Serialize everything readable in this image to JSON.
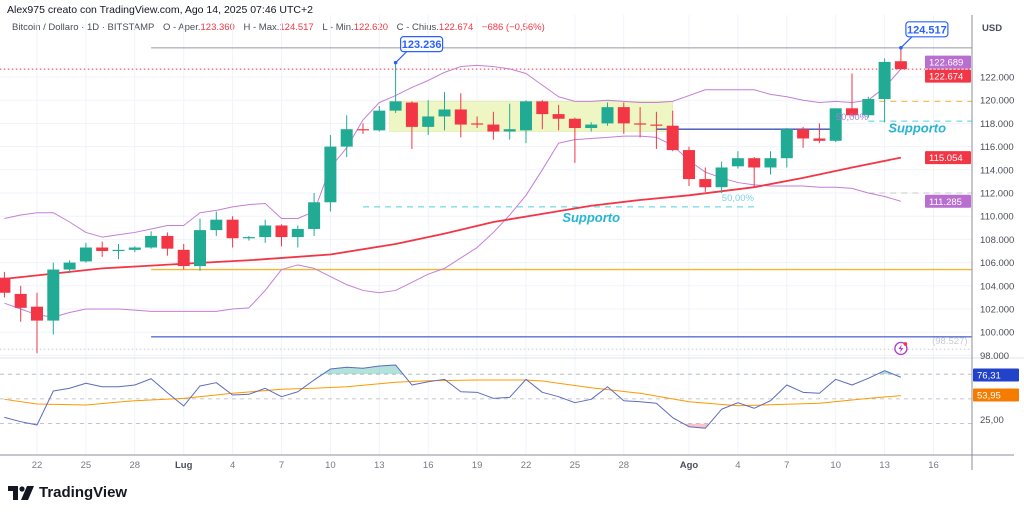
{
  "header": {
    "created_by": "Alex975 creato con TradingView.com, Ago 14, 2025 07:46 UTC+2",
    "symbol": "Bitcoin / Dollaro · 1D · BITSTAMP",
    "ohlc": [
      {
        "label": "O - Aper.",
        "value": "123.360"
      },
      {
        "label": "H - Max.",
        "value": "124.517"
      },
      {
        "label": "L - Min.",
        "value": "122.620"
      },
      {
        "label": "C - Chius.",
        "value": "122.674"
      }
    ],
    "change": "−686 (−0,56%)"
  },
  "brand": "TradingView",
  "chart_data": {
    "type": "candlestick",
    "currency": "USD",
    "colors": {
      "up": "#22ab94",
      "down": "#f23645",
      "bollinger": "#c47fd6",
      "ma": "#f23645",
      "rsi": "#5c6bc0",
      "rsi_ma": "#ff9800",
      "callout": "#2962ff"
    },
    "y_ticks": [
      {
        "value": 122000,
        "label": "122.000"
      },
      {
        "value": 120000,
        "label": "120.000"
      },
      {
        "value": 118000,
        "label": "118.000"
      },
      {
        "value": 116000,
        "label": "116.000"
      },
      {
        "value": 114000,
        "label": "114.000"
      },
      {
        "value": 112000,
        "label": "112.000"
      },
      {
        "value": 110000,
        "label": "110.000"
      },
      {
        "value": 108000,
        "label": "108.000"
      },
      {
        "value": 106000,
        "label": "106.000"
      },
      {
        "value": 104000,
        "label": "104.000"
      },
      {
        "value": 102000,
        "label": "102.000"
      },
      {
        "value": 100000,
        "label": "100.000"
      },
      {
        "value": 98000,
        "label": "98.000"
      }
    ],
    "x_ticks": [
      {
        "date": "2025-06-22",
        "label": "22"
      },
      {
        "date": "2025-06-25",
        "label": "25"
      },
      {
        "date": "2025-06-28",
        "label": "28"
      },
      {
        "date": "2025-07-01",
        "label": "Lug",
        "bold": true
      },
      {
        "date": "2025-07-04",
        "label": "4"
      },
      {
        "date": "2025-07-07",
        "label": "7"
      },
      {
        "date": "2025-07-10",
        "label": "10"
      },
      {
        "date": "2025-07-13",
        "label": "13"
      },
      {
        "date": "2025-07-16",
        "label": "16"
      },
      {
        "date": "2025-07-19",
        "label": "19"
      },
      {
        "date": "2025-07-22",
        "label": "22"
      },
      {
        "date": "2025-07-25",
        "label": "25"
      },
      {
        "date": "2025-07-28",
        "label": "28"
      },
      {
        "date": "2025-08-01",
        "label": "Ago",
        "bold": true
      },
      {
        "date": "2025-08-04",
        "label": "4"
      },
      {
        "date": "2025-08-07",
        "label": "7"
      },
      {
        "date": "2025-08-10",
        "label": "10"
      },
      {
        "date": "2025-08-13",
        "label": "13"
      },
      {
        "date": "2025-08-16",
        "label": "16"
      }
    ],
    "start_date": "2025-06-20",
    "candles": [
      [
        104700,
        105200,
        103000,
        103400
      ],
      [
        103300,
        104000,
        100900,
        102100
      ],
      [
        102200,
        103400,
        98200,
        101000
      ],
      [
        101000,
        106000,
        99800,
        105400
      ],
      [
        105400,
        106200,
        105100,
        106000
      ],
      [
        106100,
        107700,
        106000,
        107300
      ],
      [
        107300,
        107800,
        106500,
        107000
      ],
      [
        107000,
        107600,
        106300,
        107100
      ],
      [
        107100,
        107400,
        106900,
        107300
      ],
      [
        107300,
        108700,
        107200,
        108300
      ],
      [
        108300,
        108600,
        106600,
        107200
      ],
      [
        107100,
        107600,
        105400,
        105700
      ],
      [
        105700,
        109800,
        105300,
        108800
      ],
      [
        108800,
        110400,
        108300,
        109700
      ],
      [
        109700,
        110000,
        107300,
        108100
      ],
      [
        108100,
        108300,
        107900,
        108200
      ],
      [
        108200,
        109700,
        107700,
        109200
      ],
      [
        109200,
        109300,
        107400,
        108200
      ],
      [
        108200,
        109200,
        107300,
        108900
      ],
      [
        108900,
        112000,
        108300,
        111200
      ],
      [
        111200,
        117000,
        110400,
        116000
      ],
      [
        116000,
        118700,
        115100,
        117500
      ],
      [
        117500,
        118000,
        117100,
        117400
      ],
      [
        117400,
        119500,
        117300,
        119100
      ],
      [
        119100,
        123236,
        118900,
        119900
      ],
      [
        119800,
        119900,
        115800,
        117700
      ],
      [
        117700,
        120000,
        117000,
        118600
      ],
      [
        118600,
        120700,
        117400,
        119200
      ],
      [
        119200,
        120600,
        116800,
        117900
      ],
      [
        118000,
        118600,
        117600,
        117900
      ],
      [
        117900,
        119000,
        116600,
        117300
      ],
      [
        117300,
        119700,
        116600,
        117500
      ],
      [
        117400,
        120000,
        116300,
        119900
      ],
      [
        119900,
        120000,
        117500,
        118800
      ],
      [
        118800,
        119600,
        117400,
        118400
      ],
      [
        118400,
        118500,
        114600,
        117600
      ],
      [
        117600,
        118100,
        117300,
        117900
      ],
      [
        118000,
        119800,
        117800,
        119400
      ],
      [
        119400,
        119800,
        117100,
        118000
      ],
      [
        118000,
        119400,
        116800,
        117900
      ],
      [
        117900,
        119000,
        115800,
        117800
      ],
      [
        117800,
        119100,
        115600,
        115700
      ],
      [
        115700,
        116000,
        112600,
        113200
      ],
      [
        113200,
        114200,
        112100,
        112500
      ],
      [
        112500,
        114700,
        112000,
        114200
      ],
      [
        114300,
        115600,
        114100,
        115000
      ],
      [
        115000,
        115100,
        112500,
        114200
      ],
      [
        114200,
        115600,
        113600,
        115000
      ],
      [
        115000,
        117600,
        114200,
        117500
      ],
      [
        117500,
        117700,
        115900,
        116700
      ],
      [
        116700,
        118000,
        116300,
        116500
      ],
      [
        116500,
        119300,
        116400,
        119300
      ],
      [
        119300,
        122300,
        118600,
        118700
      ],
      [
        118700,
        120300,
        118500,
        120100
      ],
      [
        120100,
        123600,
        118100,
        123300
      ],
      [
        123360,
        124517,
        122620,
        122674
      ]
    ],
    "bollinger_upper": [
      109800,
      110100,
      110300,
      110300,
      109500,
      108600,
      108200,
      108400,
      108600,
      108900,
      109200,
      109200,
      110300,
      110500,
      110800,
      111000,
      111100,
      109800,
      109800,
      110400,
      114200,
      115900,
      118300,
      119800,
      120400,
      121100,
      121700,
      122400,
      122900,
      123000,
      122900,
      122700,
      122300,
      121300,
      120300,
      119900,
      119900,
      120000,
      119900,
      119800,
      119800,
      119900,
      120400,
      120900,
      120900,
      120900,
      120900,
      120500,
      120300,
      120000,
      119800,
      119900,
      119800,
      120000,
      121100,
      122689
    ],
    "bollinger_lower": [
      102500,
      102000,
      101500,
      101300,
      101700,
      102000,
      102000,
      102000,
      101900,
      101800,
      101800,
      101800,
      101800,
      101800,
      102000,
      102100,
      103600,
      105400,
      105800,
      105500,
      104800,
      104100,
      103600,
      103400,
      103600,
      104300,
      105000,
      105500,
      106400,
      107300,
      108600,
      110100,
      111800,
      114000,
      116300,
      116600,
      116700,
      116800,
      116900,
      116900,
      116800,
      116100,
      114800,
      113800,
      113300,
      112900,
      112700,
      112600,
      112600,
      112600,
      112500,
      112500,
      112400,
      112000,
      111700,
      111285
    ],
    "moving_average": [
      [
        "2025-06-20",
        104600
      ],
      [
        "2025-06-22",
        104900
      ],
      [
        "2025-06-26",
        105500
      ],
      [
        "2025-07-01",
        105900
      ],
      [
        "2025-07-05",
        106200
      ],
      [
        "2025-07-10",
        106700
      ],
      [
        "2025-07-14",
        107600
      ],
      [
        "2025-07-17",
        108500
      ],
      [
        "2025-07-20",
        109500
      ],
      [
        "2025-07-23",
        110200
      ],
      [
        "2025-07-26",
        110900
      ],
      [
        "2025-07-29",
        111400
      ],
      [
        "2025-08-01",
        111800
      ],
      [
        "2025-08-05",
        112500
      ],
      [
        "2025-08-08",
        113300
      ],
      [
        "2025-08-11",
        114200
      ],
      [
        "2025-08-14",
        115054
      ]
    ],
    "horizontal_lines": [
      {
        "name": "high-line",
        "price": 124517,
        "from": "2025-06-29",
        "color": "#b2b5be",
        "style": "solid"
      },
      {
        "name": "close-price-line",
        "price": 122674,
        "from": "2025-06-18",
        "color": "#f23645",
        "style": "dotted"
      },
      {
        "name": "orange-level-line",
        "price": 105400,
        "from": "2025-06-29",
        "color": "#f5b731",
        "style": "solid"
      },
      {
        "name": "blue-level-line",
        "price": 99600,
        "from": "2025-06-29",
        "color": "#5b6fd6",
        "style": "solid"
      },
      {
        "name": "level-98527-line",
        "price": 98527,
        "from": "2025-06-18",
        "color": "#c8cad2",
        "style": "dotted"
      },
      {
        "name": "support-dashed-line",
        "price": 110800,
        "from": "2025-07-12",
        "to": "2025-08-05",
        "color": "#4dd0e1",
        "style": "dashed"
      },
      {
        "name": "support-dashed-line-right",
        "price": 118200,
        "from": "2025-08-12",
        "color": "#4dd0e1",
        "style": "dashed"
      },
      {
        "name": "orange-dashed-line",
        "price": 119900,
        "from": "2025-08-12",
        "color": "#f5b731",
        "style": "dashed"
      },
      {
        "name": "gray-dashed-line",
        "price": 112000,
        "from": "2025-08-12",
        "color": "#c8cad2",
        "style": "dashed"
      },
      {
        "name": "resistance-line",
        "price": 117500,
        "from": "2025-07-30",
        "to": "2025-08-10",
        "color": "#3f51b5",
        "style": "solid"
      }
    ],
    "range_box": {
      "from": "2025-07-14",
      "to": "2025-07-31",
      "top": 119900,
      "bottom": 117300,
      "color": "#eef7c3"
    },
    "text_annotations": [
      {
        "text": "Supporto",
        "date": "2025-07-26",
        "price": 109500,
        "color": "#26b5d3"
      },
      {
        "text": "Supporto",
        "date": "2025-08-15",
        "price": 117200,
        "color": "#26b5d3"
      },
      {
        "text": "50,00%",
        "date": "2025-08-04",
        "price": 111300,
        "color": "#7fd3e3"
      },
      {
        "text": "50,00%",
        "date": "2025-08-11",
        "price": 118300,
        "color": "#9c7fd6"
      },
      {
        "text": "(98.527)",
        "date": "2025-08-17",
        "price": 99000,
        "color": "#c8cad2"
      }
    ],
    "callouts": [
      {
        "text": "123.236",
        "date": "2025-07-14",
        "price": 123236
      },
      {
        "text": "124.517",
        "date": "2025-08-14",
        "price": 124517
      }
    ],
    "price_badges": [
      {
        "text": "122.689",
        "price": 122689,
        "color": "#b86fcf"
      },
      {
        "text": "122.674",
        "price": 122674,
        "color": "#f23645"
      },
      {
        "text": "115.054",
        "price": 115054,
        "color": "#f23645"
      },
      {
        "text": "111.285",
        "price": 111285,
        "color": "#b86fcf"
      }
    ],
    "alert_icon": {
      "name": "lightning-alert-icon",
      "date": "2025-08-14",
      "price": 98600,
      "color": "#b13fd1"
    },
    "rsi": {
      "values": [
        27.6,
        22.3,
        18.3,
        59.6,
        62.9,
        69.0,
        64.8,
        64.8,
        66.9,
        74.5,
        57.5,
        41.4,
        65.7,
        69.7,
        54.7,
        55.6,
        62.9,
        52.7,
        58.7,
        73.0,
        86.3,
        88.4,
        87.2,
        90.0,
        91.2,
        66.9,
        70.9,
        73.8,
        58.7,
        58.0,
        50.7,
        51.9,
        73.8,
        58.0,
        52.7,
        45.4,
        49.5,
        64.8,
        47.8,
        46.6,
        44.7,
        27.2,
        16.2,
        14.3,
        37.4,
        45.4,
        38.6,
        47.8,
        66.9,
        58.0,
        56.8,
        73.8,
        66.9,
        75.0,
        84.3,
        76.31
      ],
      "ma": [
        [
          "2025-06-20",
          49.5
        ],
        [
          "2025-06-22",
          43.8
        ],
        [
          "2025-06-25",
          42.6
        ],
        [
          "2025-06-28",
          47.8
        ],
        [
          "2025-07-01",
          50.7
        ],
        [
          "2025-07-04",
          56.8
        ],
        [
          "2025-07-07",
          61.7
        ],
        [
          "2025-07-09",
          62.9
        ],
        [
          "2025-07-11",
          64.8
        ],
        [
          "2025-07-14",
          70.2
        ],
        [
          "2025-07-16",
          72.1
        ],
        [
          "2025-07-19",
          73.0
        ],
        [
          "2025-07-22",
          73.0
        ],
        [
          "2025-07-23",
          71.7
        ],
        [
          "2025-07-26",
          63.6
        ],
        [
          "2025-07-29",
          56.8
        ],
        [
          "2025-08-01",
          46.6
        ],
        [
          "2025-08-04",
          41.7
        ],
        [
          "2025-08-09",
          44.7
        ],
        [
          "2025-08-12",
          50.7
        ],
        [
          "2025-08-14",
          53.95
        ]
      ],
      "levels": [
        80,
        50,
        20
      ],
      "tick": {
        "value": 25,
        "label": "25,00"
      },
      "badges": [
        {
          "text": "76,31",
          "value": 76.31,
          "color": "#2142c9"
        },
        {
          "text": "53,95",
          "value": 53.95,
          "color": "#f57c00"
        }
      ]
    }
  }
}
